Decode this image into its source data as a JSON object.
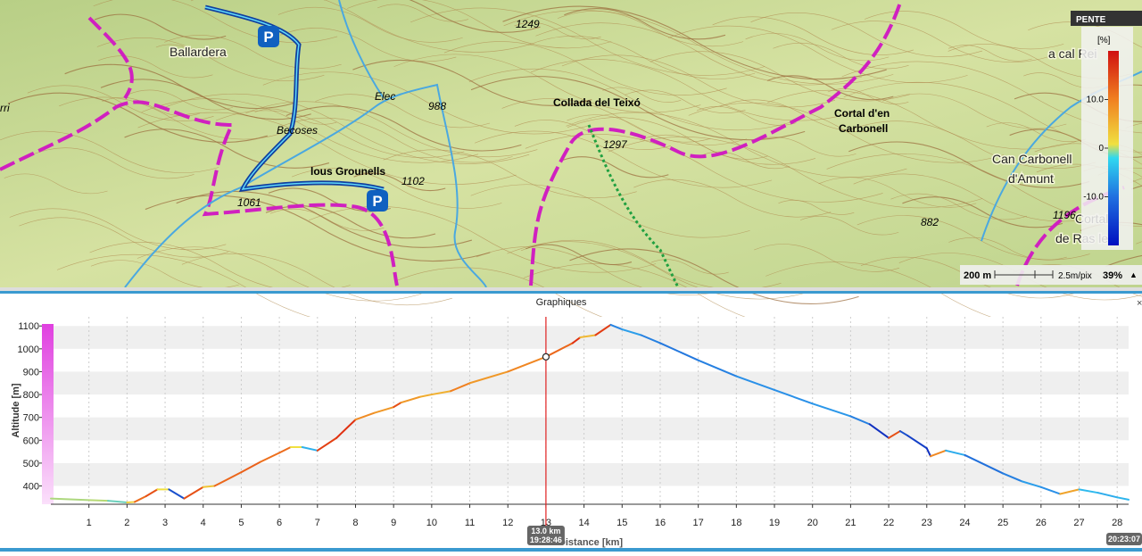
{
  "map": {
    "labels": [
      "Ballardera",
      "1249",
      "Collada del Teixó",
      "1297",
      "988",
      "lous Grounells",
      "1102",
      "1061",
      "Cortal d'en",
      "Carbonell",
      "Can Carbonell",
      "d'Amunt",
      "1196",
      "882",
      "a cal Rei",
      "Elec",
      "Becoses",
      "rri",
      "Cortal",
      "de Ras les"
    ],
    "legend": {
      "title": "PENTE",
      "unit": "[%]",
      "range": [
        -20,
        20
      ],
      "ticks": [
        {
          "value": 10,
          "label": "10.0"
        },
        {
          "value": 0,
          "label": "0"
        },
        {
          "value": -10,
          "label": "-10.0"
        }
      ]
    },
    "scale": {
      "distance": "200 m",
      "resolution": "2.5m/pix",
      "zoom": "39%"
    }
  },
  "panel": {
    "title": "Graphiques"
  },
  "chart_data": {
    "type": "line",
    "ylabel": "Altitude [m]",
    "xlabel": "Distance [km]",
    "xlim": [
      0,
      28.3
    ],
    "ylim": [
      320,
      1140
    ],
    "xticks": [
      1,
      2,
      3,
      4,
      5,
      6,
      7,
      8,
      9,
      10,
      11,
      12,
      13,
      14,
      15,
      16,
      17,
      18,
      19,
      20,
      21,
      22,
      23,
      24,
      25,
      26,
      27,
      28
    ],
    "yticks": [
      400,
      500,
      600,
      700,
      800,
      900,
      1000,
      1100
    ],
    "grid": true,
    "series": [
      {
        "name": "Altitude",
        "x": [
          0,
          1,
          1.5,
          2,
          2.2,
          2.5,
          2.8,
          3.1,
          3.5,
          4,
          4.3,
          5,
          5.5,
          6,
          6.3,
          6.6,
          7,
          7.5,
          8,
          8.5,
          9,
          9.2,
          9.7,
          10,
          10.5,
          11,
          12,
          13,
          13.7,
          13.9,
          14.3,
          14.7,
          15,
          15.5,
          16,
          17,
          18,
          19,
          20,
          21,
          21.5,
          22,
          22.3,
          22.5,
          23,
          23.1,
          23.5,
          24,
          25,
          25.5,
          26,
          26.5,
          27,
          27.5,
          28,
          28.3
        ],
        "values": [
          345,
          338,
          335,
          328,
          330,
          355,
          385,
          385,
          345,
          395,
          400,
          460,
          505,
          545,
          570,
          570,
          555,
          610,
          690,
          720,
          745,
          765,
          790,
          800,
          815,
          850,
          900,
          965,
          1025,
          1050,
          1060,
          1105,
          1085,
          1060,
          1025,
          950,
          880,
          820,
          760,
          705,
          670,
          610,
          640,
          620,
          565,
          530,
          555,
          535,
          455,
          420,
          395,
          365,
          385,
          370,
          350,
          340
        ]
      }
    ],
    "cursor": {
      "x": 13,
      "label": "13.0 km",
      "time": "19:28:46"
    },
    "end_time": "20:23:07"
  }
}
